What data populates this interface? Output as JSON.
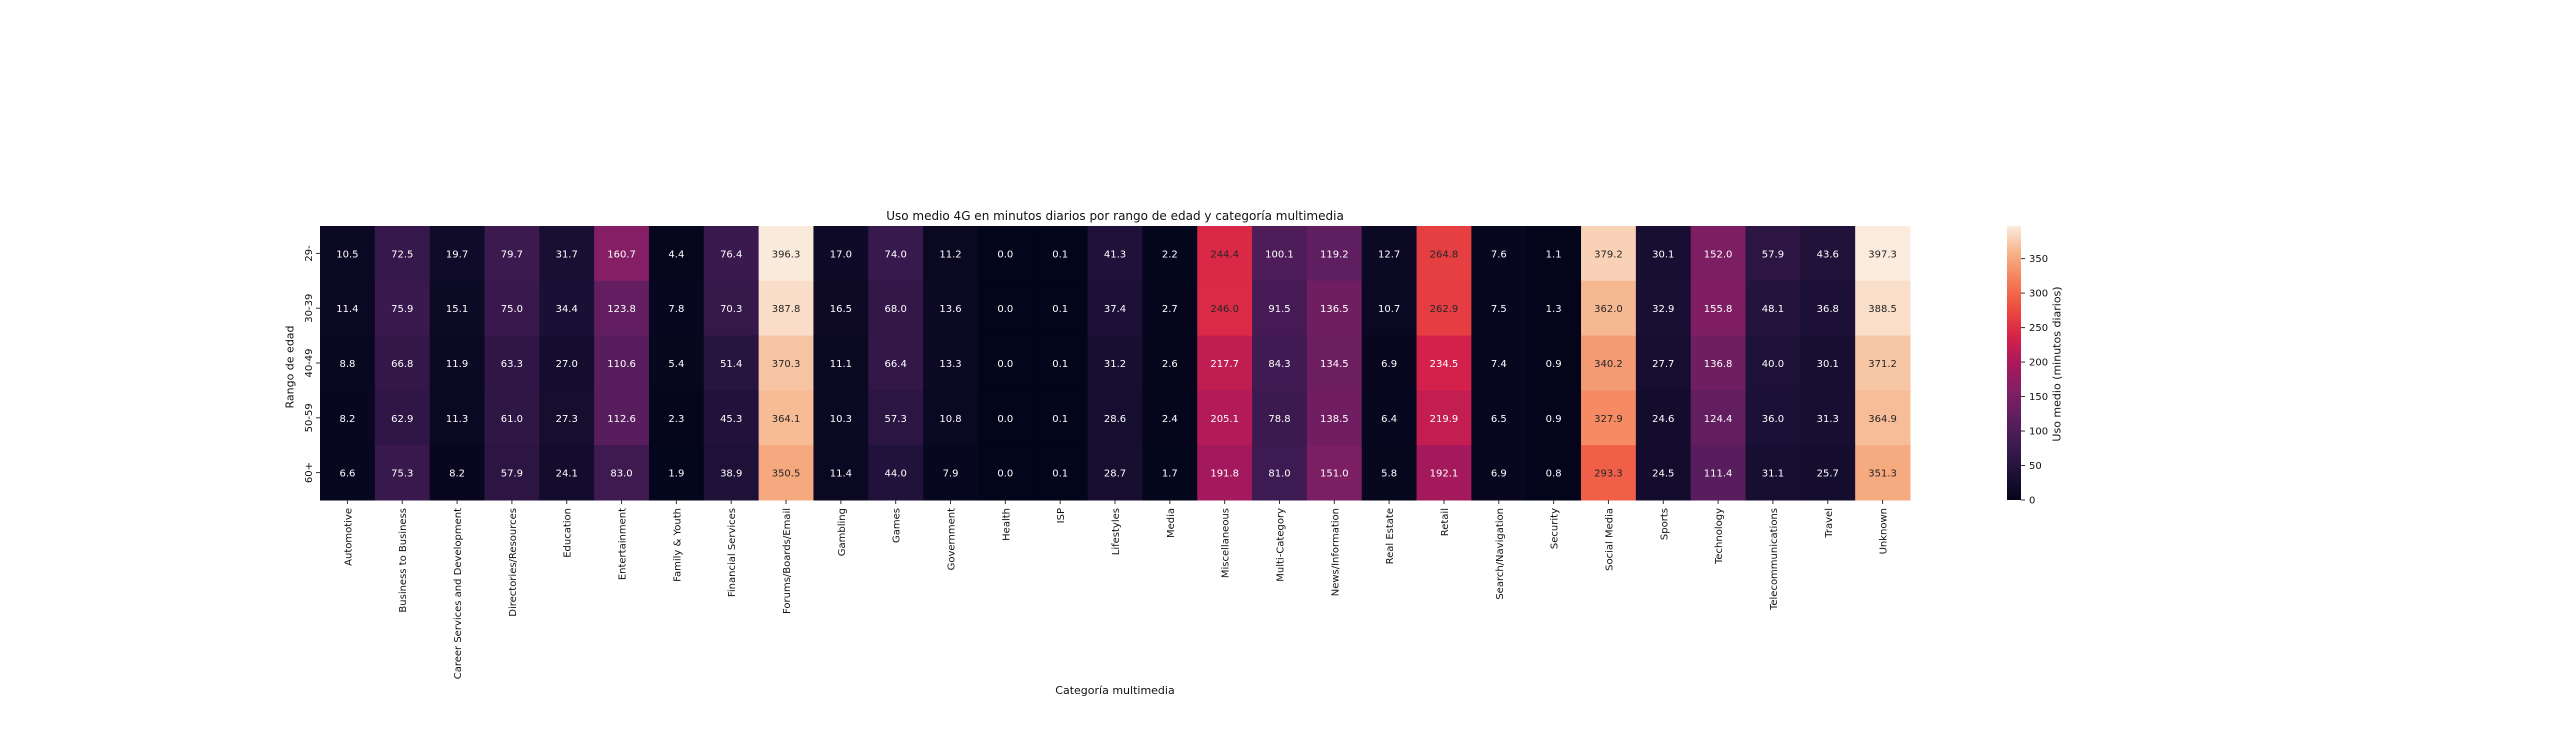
{
  "chart_data": {
    "type": "heatmap",
    "title": "Uso medio 4G en minutos diarios por rango de edad y categoría multimedia",
    "xlabel": "Categoría multimedia",
    "ylabel": "Rango de edad",
    "colorbar_label": "Uso medio (minutos diarios)",
    "colormap": "rocket",
    "value_range": [
      0,
      397.3
    ],
    "colorbar_ticks": [
      "0",
      "50",
      "100",
      "150",
      "200",
      "250",
      "300",
      "350"
    ],
    "rows": [
      "29-",
      "30-39",
      "40-49",
      "50-59",
      "60+"
    ],
    "columns": [
      "Automotive",
      "Business to Business",
      "Career Services and Development",
      "Directories/Resources",
      "Education",
      "Entertainment",
      "Family & Youth",
      "Financial Services",
      "Forums/Boards/Email",
      "Gambling",
      "Games",
      "Government",
      "Health",
      "ISP",
      "Lifestyles",
      "Media",
      "Miscellaneous",
      "Multi-Category",
      "News/Information",
      "Real Estate",
      "Retail",
      "Search/Navigation",
      "Security",
      "Social Media",
      "Sports",
      "Technology",
      "Telecommunications",
      "Travel",
      "Unknown"
    ],
    "cell_labels": [
      [
        "10.5",
        "72.5",
        "19.7",
        "79.7",
        "31.7",
        "160.7",
        "4.4",
        "76.4",
        "396.3",
        "17.0",
        "74.0",
        "11.2",
        "0.0",
        "0.1",
        "41.3",
        "2.2",
        "244.4",
        "100.1",
        "119.2",
        "12.7",
        "264.8",
        "7.6",
        "1.1",
        "379.2",
        "30.1",
        "152.0",
        "57.9",
        "43.6",
        "397.3"
      ],
      [
        "11.4",
        "75.9",
        "15.1",
        "75.0",
        "34.4",
        "123.8",
        "7.8",
        "70.3",
        "387.8",
        "16.5",
        "68.0",
        "13.6",
        "0.0",
        "0.1",
        "37.4",
        "2.7",
        "246.0",
        "91.5",
        "136.5",
        "10.7",
        "262.9",
        "7.5",
        "1.3",
        "362.0",
        "32.9",
        "155.8",
        "48.1",
        "36.8",
        "388.5"
      ],
      [
        "8.8",
        "66.8",
        "11.9",
        "63.3",
        "27.0",
        "110.6",
        "5.4",
        "51.4",
        "370.3",
        "11.1",
        "66.4",
        "13.3",
        "0.0",
        "0.1",
        "31.2",
        "2.6",
        "217.7",
        "84.3",
        "134.5",
        "6.9",
        "234.5",
        "7.4",
        "0.9",
        "340.2",
        "27.7",
        "136.8",
        "40.0",
        "30.1",
        "371.2"
      ],
      [
        "8.2",
        "62.9",
        "11.3",
        "61.0",
        "27.3",
        "112.6",
        "2.3",
        "45.3",
        "364.1",
        "10.3",
        "57.3",
        "10.8",
        "0.0",
        "0.1",
        "28.6",
        "2.4",
        "205.1",
        "78.8",
        "138.5",
        "6.4",
        "219.9",
        "6.5",
        "0.9",
        "327.9",
        "24.6",
        "124.4",
        "36.0",
        "31.3",
        "364.9"
      ],
      [
        "6.6",
        "75.3",
        "8.2",
        "57.9",
        "24.1",
        "83.0",
        "1.9",
        "38.9",
        "350.5",
        "11.4",
        "44.0",
        "7.9",
        "0.0",
        "0.1",
        "28.7",
        "1.7",
        "191.8",
        "81.0",
        "151.0",
        "5.8",
        "192.1",
        "6.9",
        "0.8",
        "293.3",
        "24.5",
        "111.4",
        "31.1",
        "25.7",
        "351.3"
      ]
    ]
  }
}
